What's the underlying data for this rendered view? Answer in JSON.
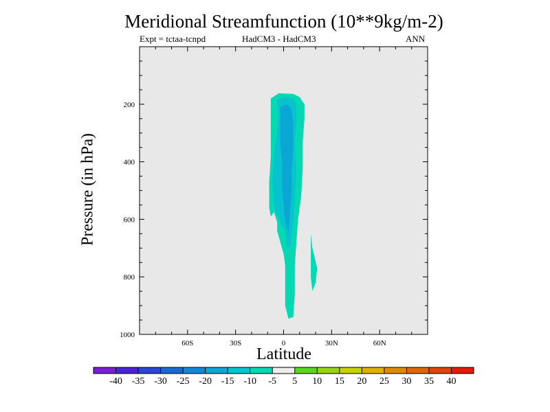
{
  "chart_data": {
    "type": "contour",
    "title": "Meridional Streamfunction (10**9kg/m-2)",
    "subtitle_left": "Expt = tctaa-tcnpd",
    "subtitle_center": "HadCM3 - HadCM3",
    "subtitle_right": "ANN",
    "xlabel": "Latitude",
    "ylabel": "Pressure (in hPa)",
    "xlim": [
      -90,
      90
    ],
    "ylim": [
      1000,
      0
    ],
    "x_ticks": [
      {
        "value": -60,
        "label": "60S"
      },
      {
        "value": -30,
        "label": "30S"
      },
      {
        "value": 0,
        "label": "0"
      },
      {
        "value": 30,
        "label": "30N"
      },
      {
        "value": 60,
        "label": "60N"
      }
    ],
    "y_ticks": [
      {
        "value": 200,
        "label": "200"
      },
      {
        "value": 400,
        "label": "400"
      },
      {
        "value": 600,
        "label": "600"
      },
      {
        "value": 800,
        "label": "800"
      },
      {
        "value": 1000,
        "label": "1000"
      }
    ],
    "background_color": "#e8e8e8",
    "colorbar": {
      "labels": [
        "-40",
        "-35",
        "-30",
        "-25",
        "-20",
        "-15",
        "-10",
        "-5",
        "5",
        "10",
        "15",
        "20",
        "25",
        "30",
        "35",
        "40"
      ],
      "colors": [
        "#7a1ed6",
        "#4a22d8",
        "#2a46d8",
        "#1a6ad6",
        "#1288d4",
        "#0aa6d4",
        "#08c2d0",
        "#06d8b4",
        "#ececec",
        "#5ad61e",
        "#96d414",
        "#c8d00a",
        "#e0b006",
        "#e08a06",
        "#e06606",
        "#e04406",
        "#dc1e06"
      ]
    },
    "regions": [
      {
        "level": "-10 to -5",
        "color": "#06d8b4",
        "points": [
          [
            -8,
            180
          ],
          [
            -3,
            162
          ],
          [
            6,
            164
          ],
          [
            10,
            175
          ],
          [
            13,
            200
          ],
          [
            13,
            250
          ],
          [
            12,
            330
          ],
          [
            12,
            420
          ],
          [
            11,
            520
          ],
          [
            9,
            600
          ],
          [
            8,
            680
          ],
          [
            7,
            760
          ],
          [
            7,
            860
          ],
          [
            6,
            940
          ],
          [
            3,
            945
          ],
          [
            1,
            900
          ],
          [
            1,
            820
          ],
          [
            1,
            760
          ],
          [
            0,
            720
          ],
          [
            -2,
            680
          ],
          [
            -4,
            640
          ],
          [
            -4,
            610
          ],
          [
            -6,
            575
          ],
          [
            -8,
            590
          ],
          [
            -9,
            560
          ],
          [
            -9,
            470
          ],
          [
            -8,
            380
          ],
          [
            -8,
            300
          ],
          [
            -8,
            240
          ]
        ]
      },
      {
        "level": "-15 to -10",
        "color": "#08c2d0",
        "points": [
          [
            -4,
            185
          ],
          [
            1,
            174
          ],
          [
            6,
            180
          ],
          [
            8,
            205
          ],
          [
            8,
            260
          ],
          [
            7,
            340
          ],
          [
            8,
            430
          ],
          [
            7,
            520
          ],
          [
            6,
            600
          ],
          [
            4,
            700
          ],
          [
            2,
            690
          ],
          [
            1,
            640
          ],
          [
            -2,
            610
          ],
          [
            -4,
            585
          ],
          [
            -6,
            555
          ],
          [
            -7,
            470
          ],
          [
            -6,
            380
          ],
          [
            -4,
            300
          ],
          [
            -3,
            240
          ]
        ]
      },
      {
        "level": "-20 to -15",
        "color": "#0aa6d4",
        "points": [
          [
            -2,
            210
          ],
          [
            2,
            200
          ],
          [
            5,
            215
          ],
          [
            6,
            270
          ],
          [
            6,
            350
          ],
          [
            5,
            430
          ],
          [
            5,
            500
          ],
          [
            4,
            580
          ],
          [
            3,
            650
          ],
          [
            1,
            605
          ],
          [
            0,
            550
          ],
          [
            -1,
            480
          ],
          [
            -1,
            400
          ],
          [
            -2,
            330
          ],
          [
            -2,
            260
          ]
        ]
      },
      {
        "level": "-10 to -5",
        "color": "#06d8b4",
        "points": [
          [
            17,
            650
          ],
          [
            18,
            700
          ],
          [
            21,
            770
          ],
          [
            20,
            820
          ],
          [
            18,
            850
          ],
          [
            17,
            800
          ],
          [
            17,
            750
          ]
        ]
      }
    ]
  }
}
